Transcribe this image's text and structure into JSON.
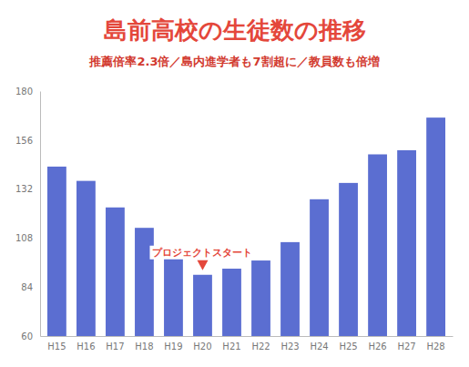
{
  "chart_data": {
    "type": "bar",
    "title": "島前高校の生徒数の推移",
    "subtitle": "推薦倍率2.3倍／島内進学者も7割超に／教員数も倍増",
    "categories": [
      "H15",
      "H16",
      "H17",
      "H18",
      "H19",
      "H20",
      "H21",
      "H22",
      "H23",
      "H24",
      "H25",
      "H26",
      "H27",
      "H28"
    ],
    "values": [
      143,
      136,
      123,
      113,
      103,
      90,
      93,
      97,
      106,
      127,
      135,
      149,
      151,
      167
    ],
    "color": "#5b6ed1",
    "ylim": [
      60,
      180
    ],
    "yticks": [
      60,
      84,
      108,
      132,
      156,
      180
    ],
    "annotations": [
      {
        "text": "プロジェクトスタート",
        "x": "H20"
      }
    ]
  }
}
